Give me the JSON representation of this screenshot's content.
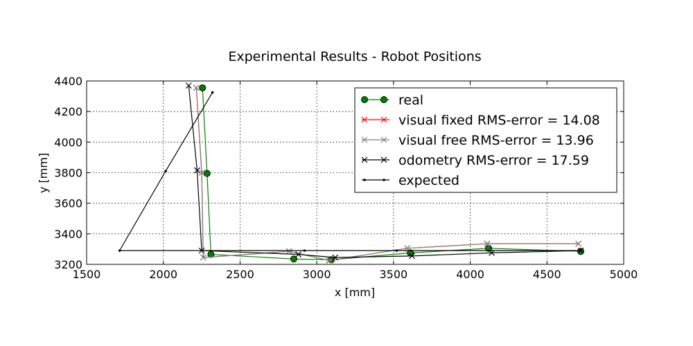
{
  "chart_data": {
    "type": "line",
    "title": "Experimental Results - Robot Positions",
    "xlabel": "x [mm]",
    "ylabel": "y [mm]",
    "xlim": [
      1500,
      5000
    ],
    "ylim": [
      3200,
      4400
    ],
    "xticks": [
      1500,
      2000,
      2500,
      3000,
      3500,
      4000,
      4500,
      5000
    ],
    "yticks": [
      3200,
      3400,
      3600,
      3800,
      4000,
      4200,
      4400
    ],
    "grid": true,
    "legend_position": "top-right",
    "series": [
      {
        "name": "real",
        "color": "#008000",
        "marker": "circle",
        "x": [
          2255,
          2285,
          2310,
          2850,
          3095,
          3610,
          4120,
          4720
        ],
        "y": [
          4355,
          3795,
          3265,
          3235,
          3230,
          3275,
          3305,
          3285
        ]
      },
      {
        "name": "visual fixed RMS-error = 14.08",
        "color": "#ff0000",
        "marker": "x",
        "x": [
          2215,
          2250,
          2260,
          2820,
          3080,
          3590,
          4110,
          4705
        ],
        "y": [
          4355,
          3800,
          3245,
          3285,
          3225,
          3305,
          3335,
          3335
        ]
      },
      {
        "name": "visual free RMS-error = 13.96",
        "color": "#808080",
        "marker": "x",
        "x": [
          2215,
          2250,
          2260,
          2820,
          3080,
          3590,
          4110,
          4705
        ],
        "y": [
          4355,
          3800,
          3245,
          3285,
          3225,
          3305,
          3335,
          3335
        ]
      },
      {
        "name": "odometry RMS-error = 17.59",
        "color": "#000000",
        "marker": "x",
        "x": [
          2165,
          2220,
          2250,
          2880,
          3120,
          3620,
          4140,
          4720
        ],
        "y": [
          4370,
          3815,
          3290,
          3265,
          3245,
          3255,
          3275,
          3290
        ]
      },
      {
        "name": "expected",
        "color": "#000000",
        "marker": "dot",
        "x": [
          2320,
          2015,
          1715,
          2920,
          3520,
          4720
        ],
        "y": [
          4325,
          3810,
          3290,
          3290,
          3290,
          3290
        ]
      }
    ]
  }
}
